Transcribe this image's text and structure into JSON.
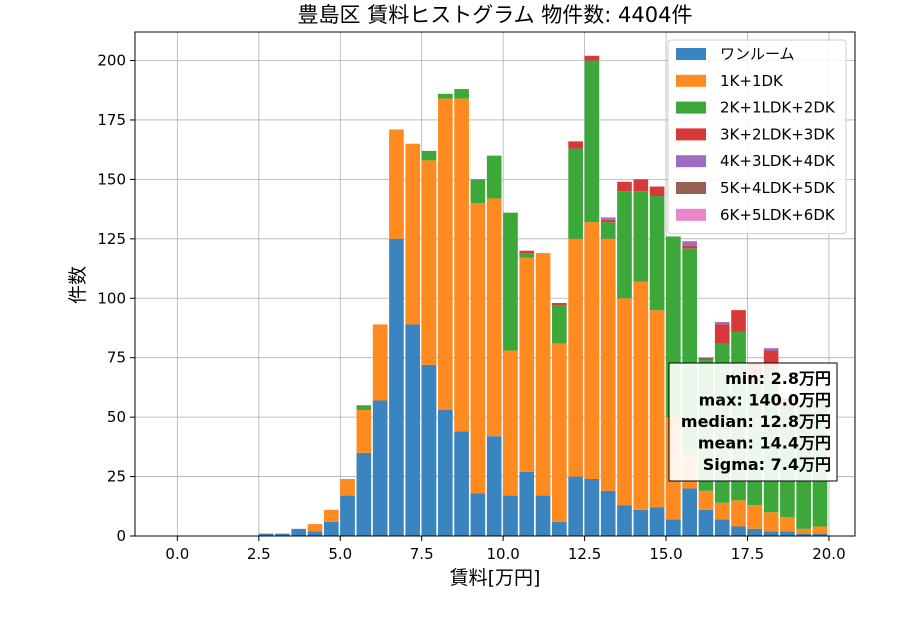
{
  "chart_data": {
    "type": "bar",
    "stacked": true,
    "title": "豊島区 賃料ヒストグラム 物件数: 4404件",
    "xlabel": "賃料[万円]",
    "ylabel": "件数",
    "xlim": [
      -1.3,
      20.8
    ],
    "ylim": [
      0,
      212
    ],
    "xticks": [
      0.0,
      2.5,
      5.0,
      7.5,
      10.0,
      12.5,
      15.0,
      17.5,
      20.0
    ],
    "xtick_labels": [
      "0.0",
      "2.5",
      "5.0",
      "7.5",
      "10.0",
      "12.5",
      "15.0",
      "17.5",
      "20.0"
    ],
    "yticks": [
      0,
      25,
      50,
      75,
      100,
      125,
      150,
      175,
      200
    ],
    "ytick_labels": [
      "0",
      "25",
      "50",
      "75",
      "100",
      "125",
      "150",
      "175",
      "200"
    ],
    "grid": true,
    "legend_position": "top-right",
    "bin_width": 0.5,
    "bin_starts": [
      0.0,
      0.5,
      1.0,
      1.5,
      2.0,
      2.5,
      3.0,
      3.5,
      4.0,
      4.5,
      5.0,
      5.5,
      6.0,
      6.5,
      7.0,
      7.5,
      8.0,
      8.5,
      9.0,
      9.5,
      10.0,
      10.5,
      11.0,
      11.5,
      12.0,
      12.5,
      13.0,
      13.5,
      14.0,
      14.5,
      15.0,
      15.5,
      16.0,
      16.5,
      17.0,
      17.5,
      18.0,
      18.5,
      19.0,
      19.5
    ],
    "series": [
      {
        "name": "ワンルーム",
        "color": "#3a85bf",
        "values": [
          0,
          0,
          0,
          0,
          0,
          1,
          1,
          3,
          2,
          6,
          17,
          35,
          57,
          125,
          89,
          72,
          53,
          44,
          18,
          42,
          17,
          27,
          17,
          6,
          25,
          24,
          19,
          13,
          11,
          12,
          7,
          20,
          11,
          7,
          4,
          3,
          2,
          2,
          1,
          1
        ]
      },
      {
        "name": "1K+1DK",
        "color": "#ff8a1f",
        "values": [
          0,
          0,
          0,
          0,
          0,
          0,
          0,
          0,
          3,
          5,
          7,
          18,
          32,
          46,
          76,
          86,
          131,
          140,
          122,
          100,
          61,
          90,
          102,
          75,
          100,
          108,
          106,
          87,
          96,
          83,
          43,
          14,
          8,
          7,
          11,
          10,
          8,
          6,
          2,
          3
        ]
      },
      {
        "name": "2K+1LDK+2DK",
        "color": "#3da83a",
        "values": [
          0,
          0,
          0,
          0,
          0,
          0,
          0,
          0,
          0,
          0,
          0,
          2,
          0,
          0,
          0,
          4,
          2,
          4,
          10,
          18,
          58,
          2,
          0,
          16,
          38,
          68,
          7,
          45,
          38,
          48,
          76,
          87,
          55,
          67,
          71,
          52,
          60,
          45,
          52,
          53
        ]
      },
      {
        "name": "3K+2LDK+3DK",
        "color": "#d6393a",
        "values": [
          0,
          0,
          0,
          0,
          0,
          0,
          0,
          0,
          0,
          0,
          0,
          0,
          0,
          0,
          0,
          0,
          0,
          0,
          0,
          0,
          0,
          1,
          0,
          1,
          3,
          2,
          1,
          4,
          5,
          4,
          0,
          1,
          0,
          8,
          9,
          8,
          8,
          5,
          0,
          0
        ]
      },
      {
        "name": "4K+3LDK+4DK",
        "color": "#9e6cc3",
        "values": [
          0,
          0,
          0,
          0,
          0,
          0,
          0,
          0,
          0,
          0,
          0,
          0,
          0,
          0,
          0,
          0,
          0,
          0,
          0,
          0,
          0,
          0,
          0,
          0,
          0,
          0,
          1,
          0,
          0,
          0,
          0,
          2,
          0,
          1,
          0,
          0,
          1,
          0,
          0,
          0
        ]
      },
      {
        "name": "5K+4LDK+5DK",
        "color": "#986054",
        "values": [
          0,
          0,
          0,
          0,
          0,
          0,
          0,
          0,
          0,
          0,
          0,
          0,
          0,
          0,
          0,
          0,
          0,
          0,
          0,
          0,
          0,
          0,
          0,
          0,
          0,
          0,
          0,
          0,
          0,
          0,
          0,
          0,
          1,
          0,
          0,
          0,
          0,
          0,
          0,
          0
        ]
      },
      {
        "name": "6K+5LDK+6DK",
        "color": "#e986c9",
        "values": [
          0,
          0,
          0,
          0,
          0,
          0,
          0,
          0,
          0,
          0,
          0,
          0,
          0,
          0,
          0,
          0,
          0,
          0,
          0,
          0,
          0,
          0,
          0,
          0,
          0,
          0,
          0,
          0,
          0,
          0,
          0,
          0,
          0,
          0,
          0,
          0,
          0,
          0,
          0,
          0
        ]
      }
    ],
    "annotations": [
      "min: 2.8万円",
      "max: 140.0万円",
      "median: 12.8万円",
      "mean: 14.4万円",
      "Sigma: 7.4万円"
    ]
  }
}
